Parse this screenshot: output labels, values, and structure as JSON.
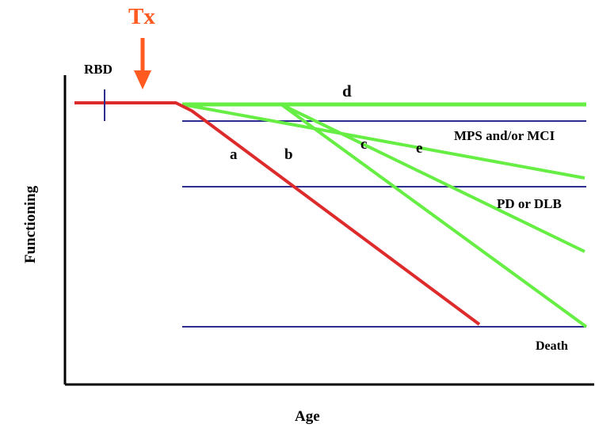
{
  "diagram": {
    "treatment_label": "Tx",
    "rbd_label": "RBD",
    "y_axis_label": "Functioning",
    "x_axis_label": "Age",
    "trajectory_labels": {
      "a": "a",
      "b": "b",
      "c": "c",
      "d": "d",
      "e": "e"
    },
    "threshold_labels": {
      "mps_mci": "MPS and/or MCI",
      "pd_dlb": "PD or DLB",
      "death": "Death"
    },
    "colors": {
      "treatment": "#ff5a1f",
      "untreated_path": "#dd2a2a",
      "treated_paths": "#66ee44",
      "thresholds": "#2d2d8f",
      "axes": "#000000"
    }
  }
}
